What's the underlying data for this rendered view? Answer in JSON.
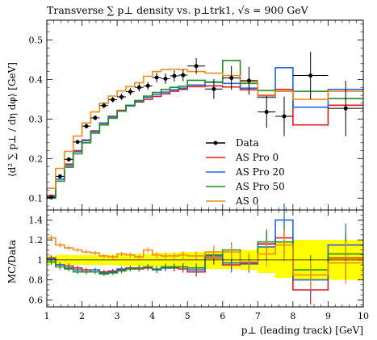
{
  "chart_data": {
    "type": "line",
    "title": "Transverse ∑ p⊥ density vs. p⊥trk1, √s = 900 GeV",
    "xlabel": "p⊥ (leading track) [GeV]",
    "main_ylabel": "⟨d² ∑ p⊥ / dη dφ⟩ [GeV]",
    "ratio_ylabel": "MC/Data",
    "xlim": [
      1,
      10
    ],
    "main_ylim": [
      0.07,
      0.55
    ],
    "ratio_ylim": [
      0.53,
      1.5
    ],
    "xticks": [
      "1",
      "2",
      "3",
      "4",
      "5",
      "6",
      "7",
      "8",
      "9",
      "10"
    ],
    "main_yticks": [
      "0.1",
      "0.2",
      "0.3",
      "0.4",
      "0.5"
    ],
    "ratio_yticks": [
      "0.6",
      "0.8",
      "1",
      "1.2",
      "1.4"
    ],
    "bin_edges": [
      1.0,
      1.25,
      1.5,
      1.75,
      2.0,
      2.25,
      2.5,
      2.75,
      3.0,
      3.25,
      3.5,
      3.75,
      4.0,
      4.25,
      4.5,
      4.75,
      5.0,
      5.5,
      6.0,
      6.5,
      7.0,
      7.5,
      8.0,
      9.0,
      10.0
    ],
    "data": {
      "name": "Data",
      "x": [
        1.125,
        1.375,
        1.625,
        1.875,
        2.125,
        2.375,
        2.625,
        2.875,
        3.125,
        3.375,
        3.625,
        3.875,
        4.125,
        4.375,
        4.625,
        4.875,
        5.25,
        5.75,
        6.25,
        6.75,
        7.25,
        7.75,
        8.5,
        9.5
      ],
      "y": [
        0.102,
        0.155,
        0.198,
        0.242,
        0.282,
        0.303,
        0.334,
        0.349,
        0.356,
        0.369,
        0.38,
        0.384,
        0.405,
        0.402,
        0.409,
        0.411,
        0.434,
        0.376,
        0.404,
        0.397,
        0.318,
        0.307,
        0.41,
        0.327
      ],
      "yerr": [
        0.003,
        0.004,
        0.005,
        0.005,
        0.006,
        0.006,
        0.007,
        0.007,
        0.008,
        0.009,
        0.01,
        0.01,
        0.012,
        0.013,
        0.014,
        0.015,
        0.02,
        0.025,
        0.03,
        0.035,
        0.04,
        0.05,
        0.06,
        0.07
      ],
      "color": "#000000"
    },
    "series": [
      {
        "name": "AS Pro 0",
        "color": "#e31a1c",
        "values": [
          0.107,
          0.148,
          0.186,
          0.22,
          0.247,
          0.27,
          0.29,
          0.307,
          0.322,
          0.334,
          0.343,
          0.35,
          0.357,
          0.364,
          0.37,
          0.375,
          0.382,
          0.384,
          0.381,
          0.374,
          0.36,
          0.375,
          0.285,
          0.335
        ],
        "ratio": [
          1.02,
          0.95,
          0.94,
          0.92,
          0.9,
          0.9,
          0.88,
          0.89,
          0.9,
          0.92,
          0.91,
          0.92,
          0.9,
          0.92,
          0.92,
          0.91,
          0.88,
          1.02,
          0.95,
          0.97,
          1.16,
          1.22,
          0.7,
          1.02
        ]
      },
      {
        "name": "AS Pro 20",
        "color": "#2166dd",
        "values": [
          0.103,
          0.148,
          0.182,
          0.217,
          0.245,
          0.268,
          0.289,
          0.305,
          0.32,
          0.333,
          0.345,
          0.355,
          0.362,
          0.368,
          0.374,
          0.378,
          0.386,
          0.393,
          0.39,
          0.378,
          0.355,
          0.43,
          0.33,
          0.375
        ],
        "ratio": [
          1.01,
          0.95,
          0.92,
          0.9,
          0.88,
          0.9,
          0.87,
          0.88,
          0.91,
          0.91,
          0.92,
          0.93,
          0.9,
          0.92,
          0.93,
          0.93,
          0.9,
          1.04,
          0.97,
          0.96,
          1.13,
          1.4,
          0.8,
          1.15
        ]
      },
      {
        "name": "AS Pro 50",
        "color": "#238b23",
        "values": [
          0.1,
          0.143,
          0.178,
          0.212,
          0.24,
          0.264,
          0.285,
          0.302,
          0.32,
          0.335,
          0.347,
          0.358,
          0.367,
          0.375,
          0.38,
          0.383,
          0.398,
          0.394,
          0.448,
          0.39,
          0.372,
          0.37,
          0.37,
          0.352
        ],
        "ratio": [
          0.98,
          0.93,
          0.91,
          0.88,
          0.88,
          0.88,
          0.86,
          0.87,
          0.89,
          0.91,
          0.92,
          0.93,
          0.91,
          0.93,
          0.93,
          0.93,
          0.92,
          1.05,
          1.1,
          0.98,
          1.18,
          1.18,
          0.9,
          1.06
        ]
      },
      {
        "name": "AS 0",
        "color": "#f28b1c",
        "values": [
          0.125,
          0.175,
          0.218,
          0.257,
          0.29,
          0.318,
          0.34,
          0.358,
          0.371,
          0.382,
          0.392,
          0.408,
          0.42,
          0.425,
          0.426,
          0.425,
          0.42,
          0.416,
          0.41,
          0.395,
          0.358,
          0.37,
          0.35,
          0.37
        ],
        "ratio": [
          1.22,
          1.15,
          1.12,
          1.1,
          1.08,
          1.07,
          1.04,
          1.03,
          1.06,
          1.05,
          1.03,
          1.1,
          1.05,
          1.04,
          1.04,
          1.05,
          1.04,
          1.08,
          1.08,
          0.98,
          1.06,
          1.15,
          0.85,
          0.97
        ]
      }
    ],
    "ratio_band": [
      0.04,
      0.05,
      0.05,
      0.05,
      0.05,
      0.05,
      0.05,
      0.05,
      0.06,
      0.06,
      0.06,
      0.06,
      0.07,
      0.07,
      0.07,
      0.08,
      0.08,
      0.09,
      0.09,
      0.1,
      0.13,
      0.18,
      0.2,
      0.2
    ],
    "band_color": "#ffff00",
    "legend_position": "lower-right",
    "grid": false
  }
}
